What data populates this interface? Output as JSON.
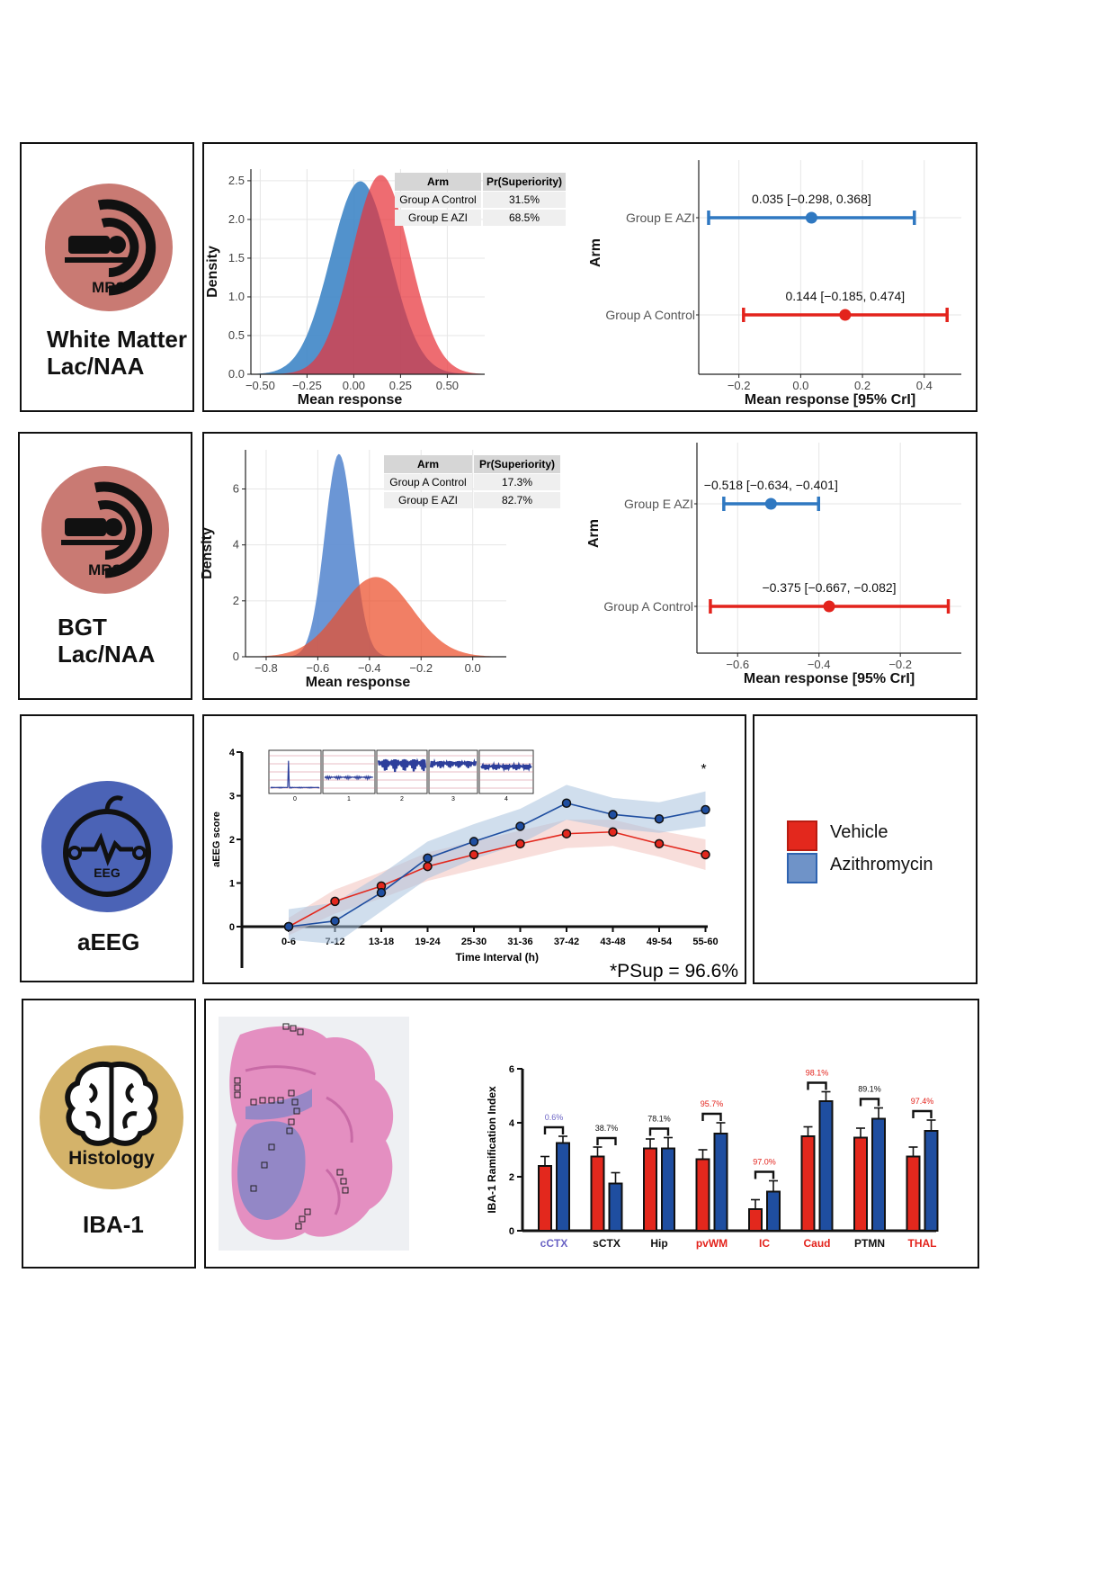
{
  "rows": {
    "wm": {
      "icon_label": "MRS",
      "label_line1": "White Matter",
      "label_line2": "Lac/NAA"
    },
    "bgt": {
      "icon_label": "MRS",
      "label_line1": "BGT",
      "label_line2": "Lac/NAA"
    },
    "aeeg": {
      "icon_label": "EEG",
      "label_line1": "aEEG"
    },
    "histo": {
      "icon_label": "Histology",
      "label_line1": "IBA-1"
    }
  },
  "legend": {
    "items": [
      {
        "label": "Vehicle",
        "color": "#e3281d"
      },
      {
        "label": "Azithromycin",
        "color": "#3f73b6"
      }
    ]
  },
  "icon_colors": {
    "mrs": "#c97a73",
    "eeg": "#4b63b6",
    "histology": "#d4b36a"
  },
  "chart_data": [
    {
      "id": "wm_density",
      "type": "area",
      "xlabel": "Mean response",
      "ylabel": "Density",
      "xlim": [
        -0.55,
        0.7
      ],
      "ylim": [
        0,
        2.65
      ],
      "xticks": [
        "−0.50",
        "−0.25",
        "0.00",
        "0.25",
        "0.50"
      ],
      "xtick_values": [
        -0.5,
        -0.25,
        0,
        0.25,
        0.5
      ],
      "yticks": [
        "0.0",
        "0.5",
        "1.0",
        "1.5",
        "2.0",
        "2.5"
      ],
      "ytick_values": [
        0,
        0.5,
        1.0,
        1.5,
        2.0,
        2.5
      ],
      "series": [
        {
          "name": "Group E AZI",
          "color": "#3f86c6",
          "mean": 0.035,
          "sd": 0.16
        },
        {
          "name": "Group A Control",
          "color": "#e8333a",
          "mean": 0.144,
          "sd": 0.155
        }
      ],
      "table": {
        "headers": [
          "Arm",
          "Pr(Superiority)"
        ],
        "rows": [
          [
            "Group A Control",
            "31.5%"
          ],
          [
            "Group E AZI",
            "68.5%"
          ]
        ]
      }
    },
    {
      "id": "wm_forest",
      "type": "scatter",
      "xlabel": "Mean response [95% CrI]",
      "ylabel": "Arm",
      "xlim": [
        -0.33,
        0.52
      ],
      "xticks": [
        "−0.2",
        "0.0",
        "0.2",
        "0.4"
      ],
      "xtick_values": [
        -0.2,
        0,
        0.2,
        0.4
      ],
      "categories": [
        "Group E AZI",
        "Group A Control"
      ],
      "points": [
        {
          "arm": "Group E AZI",
          "mean": 0.035,
          "lo": -0.298,
          "hi": 0.368,
          "label": "0.035 [−0.298, 0.368]",
          "color": "#2f78c1"
        },
        {
          "arm": "Group A Control",
          "mean": 0.144,
          "lo": -0.185,
          "hi": 0.474,
          "label": "0.144 [−0.185, 0.474]",
          "color": "#e3231c"
        }
      ]
    },
    {
      "id": "bgt_density",
      "type": "area",
      "xlabel": "Mean response",
      "ylabel": "Density",
      "xlim": [
        -0.88,
        0.13
      ],
      "ylim": [
        0,
        7.4
      ],
      "xticks": [
        "−0.8",
        "−0.6",
        "−0.4",
        "−0.2",
        "0.0"
      ],
      "xtick_values": [
        -0.8,
        -0.6,
        -0.4,
        -0.2,
        0
      ],
      "yticks": [
        "0",
        "2",
        "4",
        "6"
      ],
      "ytick_values": [
        0,
        2,
        4,
        6
      ],
      "series": [
        {
          "name": "Group E AZI",
          "color": "#5b8bd0",
          "mean": -0.518,
          "sd": 0.055
        },
        {
          "name": "Group A Control",
          "color": "#eb4e2a",
          "mean": -0.375,
          "sd": 0.14
        }
      ],
      "table": {
        "headers": [
          "Arm",
          "Pr(Superiority)"
        ],
        "rows": [
          [
            "Group A Control",
            "17.3%"
          ],
          [
            "Group E AZI",
            "82.7%"
          ]
        ]
      }
    },
    {
      "id": "bgt_forest",
      "type": "scatter",
      "xlabel": "Mean response [95% CrI]",
      "ylabel": "Arm",
      "xlim": [
        -0.7,
        -0.05
      ],
      "xticks": [
        "−0.6",
        "−0.4",
        "−0.2"
      ],
      "xtick_values": [
        -0.6,
        -0.4,
        -0.2
      ],
      "categories": [
        "Group E AZI",
        "Group A Control"
      ],
      "points": [
        {
          "arm": "Group E AZI",
          "mean": -0.518,
          "lo": -0.634,
          "hi": -0.401,
          "label": "−0.518 [−0.634, −0.401]",
          "color": "#2f78c1"
        },
        {
          "arm": "Group A Control",
          "mean": -0.375,
          "lo": -0.667,
          "hi": -0.082,
          "label": "−0.375 [−0.667, −0.082]",
          "color": "#e3231c"
        }
      ]
    },
    {
      "id": "aeeg_line",
      "type": "line",
      "xlabel": "Time Interval (h)",
      "ylabel": "aEEG score",
      "ylim": [
        -1,
        4
      ],
      "yticks": [
        "0",
        "1",
        "2",
        "3",
        "4"
      ],
      "ytick_values": [
        0,
        1,
        2,
        3,
        4
      ],
      "categories": [
        "0-6",
        "7-12",
        "13-18",
        "19-24",
        "25-30",
        "31-36",
        "37-42",
        "43-48",
        "49-54",
        "55-60"
      ],
      "series": [
        {
          "name": "Vehicle",
          "color": "#e3281d",
          "band": "#f3c3be",
          "values": [
            0.0,
            0.58,
            0.93,
            1.38,
            1.65,
            1.9,
            2.13,
            2.17,
            1.9,
            1.65
          ],
          "lower": [
            -0.2,
            0.3,
            0.65,
            1.05,
            1.3,
            1.55,
            1.8,
            1.85,
            1.6,
            1.3
          ],
          "upper": [
            0.2,
            0.85,
            1.25,
            1.7,
            1.95,
            2.2,
            2.45,
            2.45,
            2.2,
            2.0
          ]
        },
        {
          "name": "Azithromycin",
          "color": "#1f4ea0",
          "band": "#a9c3de",
          "values": [
            0.0,
            0.13,
            0.78,
            1.57,
            1.95,
            2.3,
            2.83,
            2.57,
            2.47,
            2.68
          ],
          "lower": [
            -0.3,
            -0.4,
            0.35,
            1.1,
            1.55,
            1.9,
            2.45,
            2.25,
            2.15,
            2.3
          ],
          "upper": [
            0.4,
            0.55,
            1.2,
            1.95,
            2.35,
            2.7,
            3.25,
            2.95,
            2.85,
            3.1
          ]
        }
      ],
      "significance_marker": "*",
      "annotation": "*PSup = 96.6%",
      "inset_labels": [
        "0",
        "1",
        "2",
        "3",
        "4"
      ]
    },
    {
      "id": "iba1_bar",
      "type": "bar",
      "ylabel": "IBA-1 Ramification Index",
      "ylim": [
        0,
        6
      ],
      "yticks": [
        "0",
        "2",
        "4",
        "6"
      ],
      "ytick_values": [
        0,
        2,
        4,
        6
      ],
      "categories": [
        "cCTX",
        "sCTX",
        "Hip",
        "pvWM",
        "IC",
        "Caud",
        "PTMN",
        "THAL"
      ],
      "category_colors": [
        "#6a63c4",
        "#111111",
        "#111111",
        "#e3231c",
        "#e3231c",
        "#e3231c",
        "#111111",
        "#e3231c"
      ],
      "pct_labels": [
        "0.6%",
        "38.7%",
        "78.1%",
        "95.7%",
        "97.0%",
        "98.1%",
        "89.1%",
        "97.4%"
      ],
      "pct_colors": [
        "#6a63c4",
        "#111111",
        "#111111",
        "#e3231c",
        "#e3231c",
        "#e3231c",
        "#111111",
        "#e3231c"
      ],
      "series": [
        {
          "name": "Vehicle",
          "color": "#e3281d",
          "values": [
            2.4,
            2.75,
            3.05,
            2.65,
            0.8,
            3.5,
            3.45,
            2.75
          ],
          "errors": [
            0.35,
            0.35,
            0.35,
            0.35,
            0.35,
            0.35,
            0.35,
            0.35
          ]
        },
        {
          "name": "Azithromycin",
          "color": "#1f4ea0",
          "values": [
            3.25,
            1.75,
            3.05,
            3.6,
            1.45,
            4.8,
            4.15,
            3.7
          ],
          "errors": [
            0.25,
            0.4,
            0.4,
            0.4,
            0.4,
            0.35,
            0.4,
            0.4
          ]
        }
      ]
    }
  ]
}
